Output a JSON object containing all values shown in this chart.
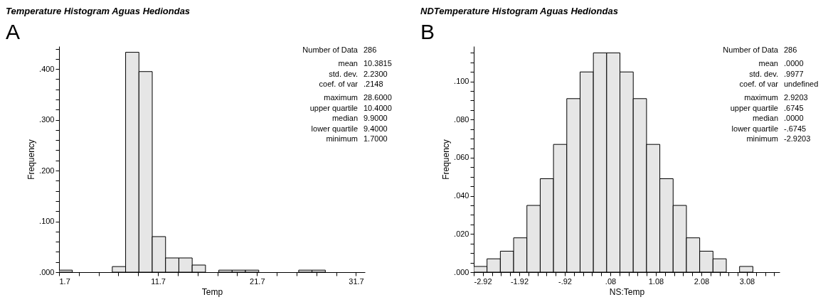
{
  "chart_data": [
    {
      "type": "histogram",
      "title": "Temperature Histogram Aguas Hediondas",
      "xlabel": "Temp",
      "ylabel": "Frequency",
      "bins": [
        1.7,
        3.045,
        4.39,
        5.735,
        7.08,
        8.425,
        9.77,
        11.115,
        12.46,
        13.805,
        15.15,
        16.495,
        17.84,
        19.185,
        20.53,
        21.875,
        23.22,
        24.565,
        25.91,
        27.255,
        28.6
      ],
      "series": [
        {
          "color": "#e6e6e6",
          "values": [
            0.004,
            0,
            0,
            0,
            0.011,
            0.433,
            0.395,
            0.07,
            0.028,
            0.028,
            0.014,
            0,
            0.004,
            0.004,
            0.004,
            0,
            0,
            0,
            0.004,
            0.004
          ]
        }
      ],
      "xlim": [
        1.7,
        32.6
      ],
      "ylim": [
        0,
        0.445
      ],
      "xticks": [
        1.7,
        {
          "value": 3.7,
          "label": null
        },
        {
          "value": 5.7,
          "label": null
        },
        {
          "value": 7.7,
          "label": null
        },
        {
          "value": 9.7,
          "label": null
        },
        11.7,
        {
          "value": 13.7,
          "label": null
        },
        {
          "value": 15.7,
          "label": null
        },
        {
          "value": 17.7,
          "label": null
        },
        {
          "value": 19.7,
          "label": null
        },
        21.7,
        {
          "value": 23.7,
          "label": null
        },
        {
          "value": 25.7,
          "label": null
        },
        {
          "value": 27.7,
          "label": null
        },
        {
          "value": 29.7,
          "label": null
        },
        31.7
      ],
      "yticks": [
        {
          "value": 0,
          "label": ".000"
        },
        {
          "value": 0.02,
          "label": null
        },
        {
          "value": 0.04,
          "label": null
        },
        {
          "value": 0.06,
          "label": null
        },
        {
          "value": 0.08,
          "label": null
        },
        {
          "value": 0.1,
          "label": ".100"
        },
        {
          "value": 0.12,
          "label": null
        },
        {
          "value": 0.14,
          "label": null
        },
        {
          "value": 0.16,
          "label": null
        },
        {
          "value": 0.18,
          "label": null
        },
        {
          "value": 0.2,
          "label": ".200"
        },
        {
          "value": 0.22,
          "label": null
        },
        {
          "value": 0.24,
          "label": null
        },
        {
          "value": 0.26,
          "label": null
        },
        {
          "value": 0.28,
          "label": null
        },
        {
          "value": 0.3,
          "label": ".300"
        },
        {
          "value": 0.32,
          "label": null
        },
        {
          "value": 0.34,
          "label": null
        },
        {
          "value": 0.36,
          "label": null
        },
        {
          "value": 0.38,
          "label": null
        },
        {
          "value": 0.4,
          "label": ".400"
        },
        {
          "value": 0.42,
          "label": null
        },
        {
          "value": 0.44,
          "label": null
        }
      ],
      "grid": false,
      "annotations": [
        "A",
        "Number of Data",
        "286",
        "mean",
        "10.3815",
        "std. dev.",
        "2.2300",
        "coef. of var",
        ".2148",
        "maximum",
        "28.6000",
        "upper quartile",
        "10.4000",
        "median",
        "9.9000",
        "lower quartile",
        "9.4000",
        "minimum",
        "1.7000"
      ]
    },
    {
      "type": "histogram",
      "title": "NDTemperature Histogram Aguas Hediondas",
      "xlabel": "NS:Temp",
      "ylabel": "Frequency",
      "bins": [
        -2.92,
        -2.628,
        -2.336,
        -2.044,
        -1.752,
        -1.46,
        -1.168,
        -0.876,
        -0.584,
        -0.292,
        0,
        0.292,
        0.584,
        0.876,
        1.168,
        1.46,
        1.752,
        2.044,
        2.336,
        2.628,
        2.92,
        3.212
      ],
      "series": [
        {
          "color": "#e6e6e6",
          "values": [
            0.003,
            0.007,
            0.011,
            0.018,
            0.035,
            0.049,
            0.067,
            0.091,
            0.105,
            0.115,
            0.115,
            0.105,
            0.091,
            0.067,
            0.049,
            0.035,
            0.018,
            0.011,
            0.007,
            0,
            0.003
          ]
        }
      ],
      "xlim": [
        -2.92,
        3.8
      ],
      "ylim": [
        0,
        0.1185
      ],
      "xticks": [
        -2.92,
        {
          "value": -2.72,
          "label": null
        },
        {
          "value": -2.52,
          "label": null
        },
        {
          "value": -2.32,
          "label": null
        },
        {
          "value": -2.12,
          "label": null
        },
        -1.92,
        {
          "value": -1.72,
          "label": null
        },
        {
          "value": -1.52,
          "label": null
        },
        {
          "value": -1.32,
          "label": null
        },
        {
          "value": -1.12,
          "label": null
        },
        {
          "value": -0.92,
          "label": "-.92"
        },
        {
          "value": -0.72,
          "label": null
        },
        {
          "value": -0.52,
          "label": null
        },
        {
          "value": -0.32,
          "label": null
        },
        {
          "value": -0.12,
          "label": null
        },
        {
          "value": 0.08,
          "label": ".08"
        },
        {
          "value": 0.28,
          "label": null
        },
        {
          "value": 0.48,
          "label": null
        },
        {
          "value": 0.68,
          "label": null
        },
        {
          "value": 0.88,
          "label": null
        },
        1.08,
        {
          "value": 1.28,
          "label": null
        },
        {
          "value": 1.48,
          "label": null
        },
        {
          "value": 1.68,
          "label": null
        },
        {
          "value": 1.88,
          "label": null
        },
        2.08,
        {
          "value": 2.28,
          "label": null
        },
        {
          "value": 2.48,
          "label": null
        },
        {
          "value": 2.68,
          "label": null
        },
        {
          "value": 2.88,
          "label": null
        },
        3.08,
        {
          "value": 3.28,
          "label": null
        },
        {
          "value": 3.48,
          "label": null
        },
        {
          "value": 3.68,
          "label": null
        }
      ],
      "yticks": [
        {
          "value": 0,
          "label": ".000"
        },
        {
          "value": 0.005,
          "label": null
        },
        {
          "value": 0.01,
          "label": null
        },
        {
          "value": 0.015,
          "label": null
        },
        {
          "value": 0.02,
          "label": ".020"
        },
        {
          "value": 0.025,
          "label": null
        },
        {
          "value": 0.03,
          "label": null
        },
        {
          "value": 0.035,
          "label": null
        },
        {
          "value": 0.04,
          "label": ".040"
        },
        {
          "value": 0.045,
          "label": null
        },
        {
          "value": 0.05,
          "label": null
        },
        {
          "value": 0.055,
          "label": null
        },
        {
          "value": 0.06,
          "label": ".060"
        },
        {
          "value": 0.065,
          "label": null
        },
        {
          "value": 0.07,
          "label": null
        },
        {
          "value": 0.075,
          "label": null
        },
        {
          "value": 0.08,
          "label": ".080"
        },
        {
          "value": 0.085,
          "label": null
        },
        {
          "value": 0.09,
          "label": null
        },
        {
          "value": 0.095,
          "label": null
        },
        {
          "value": 0.1,
          "label": ".100"
        },
        {
          "value": 0.105,
          "label": null
        },
        {
          "value": 0.11,
          "label": null
        },
        {
          "value": 0.115,
          "label": null
        }
      ],
      "grid": false,
      "annotations": [
        "B",
        "Number of Data",
        "286",
        "mean",
        ".0000",
        "std. dev.",
        ".9977",
        "coef. of var",
        "undefined",
        "maximum",
        "2.9203",
        "upper quartile",
        ".6745",
        "median",
        ".0000",
        "lower quartile",
        "-.6745",
        "minimum",
        "-2.9203"
      ]
    }
  ]
}
